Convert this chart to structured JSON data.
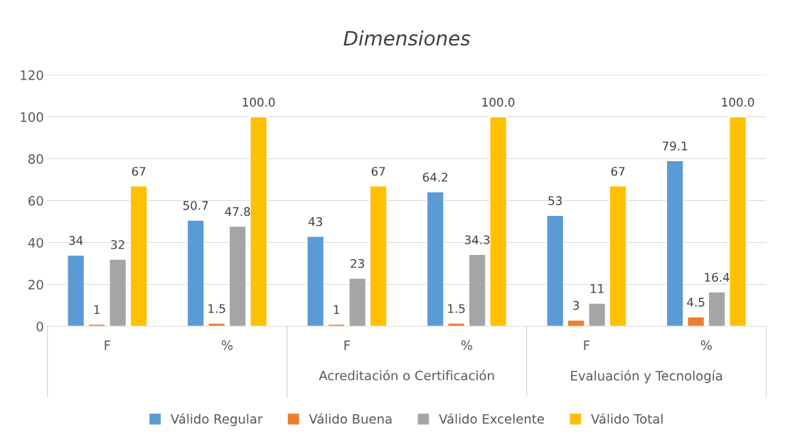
{
  "chart_data": {
    "type": "bar",
    "title": "Dimensiones",
    "categories": [
      "F",
      "%",
      "F",
      "%",
      "F",
      "%"
    ],
    "series": [
      {
        "name": "Válido Regular",
        "color": "#5b9bd5",
        "values": [
          34,
          50.7,
          43,
          64.2,
          53,
          79.1
        ],
        "value_labels": [
          "34",
          "50.7",
          "43",
          "64.2",
          "53",
          "79.1"
        ]
      },
      {
        "name": "Válido Buena",
        "color": "#ed7d31",
        "values": [
          1,
          1.5,
          1,
          1.5,
          3,
          4.5
        ],
        "value_labels": [
          "1",
          "1.5",
          "1",
          "1.5",
          "3",
          "4.5"
        ]
      },
      {
        "name": "Válido Excelente",
        "color": "#a5a5a5",
        "values": [
          32,
          47.8,
          23,
          34.3,
          11,
          16.4
        ],
        "value_labels": [
          "32",
          "47.8",
          "23",
          "34.3",
          "11",
          "16.4"
        ]
      },
      {
        "name": "Válido Total",
        "color": "#ffc000",
        "values": [
          67,
          100,
          67,
          100,
          67,
          100
        ],
        "value_labels": [
          "67",
          "100.0",
          "67",
          "100.0",
          "67",
          "100.0"
        ]
      }
    ],
    "annotations": [
      "Acreditación o Certificación",
      "Evaluación y Tecnología"
    ],
    "ylim": [
      0,
      120
    ],
    "yticks": [
      0,
      20,
      40,
      60,
      80,
      100,
      120
    ],
    "grid": "y",
    "legend": "bottom"
  }
}
